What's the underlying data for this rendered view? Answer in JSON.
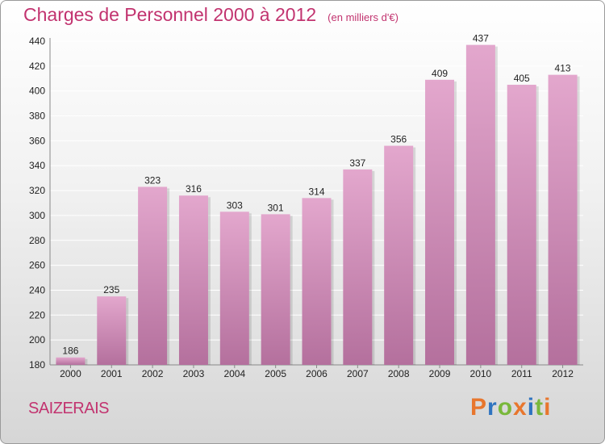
{
  "header": {
    "title": "Charges de Personnel 2000 à 2012",
    "unit": "(en milliers d'€)"
  },
  "footer": {
    "place": "SAIZERAIS",
    "logo_letters": [
      "P",
      "r",
      "o",
      "x",
      "i",
      "t",
      "i"
    ],
    "logo_colors": [
      "#e8762d",
      "#2f74c0",
      "#79b83b",
      "#e8762d",
      "#2f74c0",
      "#79b83b",
      "#e8762d"
    ]
  },
  "colors": {
    "bar_light": "#e3a7cd",
    "bar_dark": "#b4709d",
    "grid": "#ffffff",
    "text": "#222222",
    "accent": "#c2336f"
  },
  "chart_data": {
    "type": "bar",
    "title": "Charges de Personnel 2000 à 2012",
    "categories": [
      "2000",
      "2001",
      "2002",
      "2003",
      "2004",
      "2005",
      "2006",
      "2007",
      "2008",
      "2009",
      "2010",
      "2011",
      "2012"
    ],
    "values": [
      186,
      235,
      323,
      316,
      303,
      301,
      314,
      337,
      356,
      409,
      437,
      405,
      413
    ],
    "ylim": [
      180,
      440
    ],
    "yticks": [
      180,
      200,
      220,
      240,
      260,
      280,
      300,
      320,
      340,
      360,
      380,
      400,
      420,
      440
    ],
    "grid": true
  }
}
